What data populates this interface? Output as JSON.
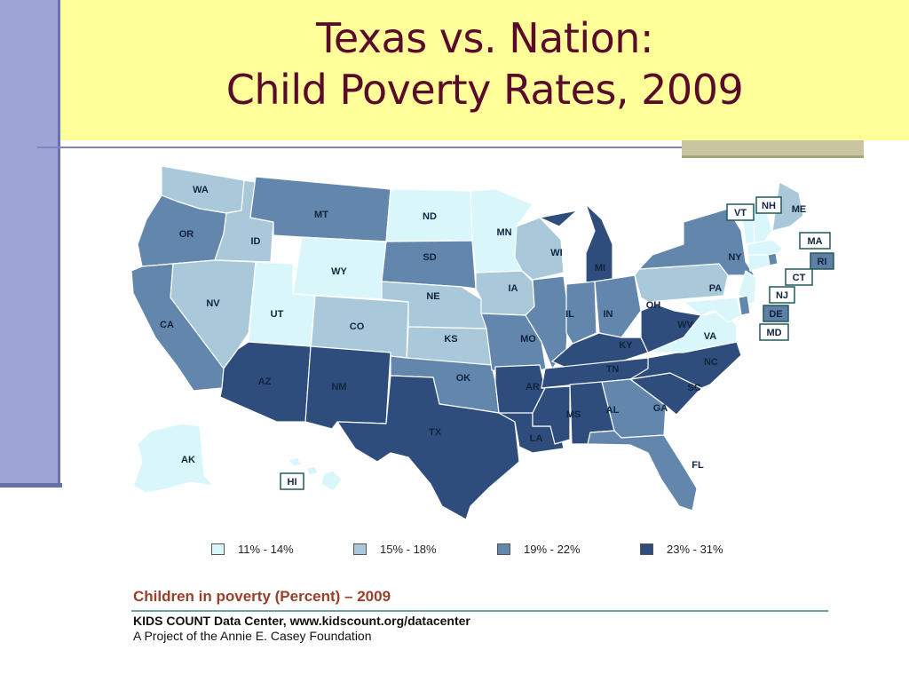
{
  "slide": {
    "title_line1": "Texas vs. Nation:",
    "title_line2": "Child Poverty Rates, 2009"
  },
  "map": {
    "legend": [
      {
        "label": "11% - 14%",
        "color": "#d9f6fa"
      },
      {
        "label": "15% - 18%",
        "color": "#a9c9db"
      },
      {
        "label": "19% - 22%",
        "color": "#6386ad"
      },
      {
        "label": "23% - 31%",
        "color": "#2f4d7c"
      }
    ],
    "states": [
      {
        "code": "WA",
        "bin": 1
      },
      {
        "code": "OR",
        "bin": 2
      },
      {
        "code": "CA",
        "bin": 2
      },
      {
        "code": "ID",
        "bin": 1
      },
      {
        "code": "NV",
        "bin": 1
      },
      {
        "code": "MT",
        "bin": 2
      },
      {
        "code": "WY",
        "bin": 0
      },
      {
        "code": "UT",
        "bin": 0
      },
      {
        "code": "CO",
        "bin": 1
      },
      {
        "code": "AZ",
        "bin": 3
      },
      {
        "code": "NM",
        "bin": 3
      },
      {
        "code": "ND",
        "bin": 0
      },
      {
        "code": "SD",
        "bin": 2
      },
      {
        "code": "NE",
        "bin": 1
      },
      {
        "code": "KS",
        "bin": 1
      },
      {
        "code": "OK",
        "bin": 2
      },
      {
        "code": "TX",
        "bin": 3
      },
      {
        "code": "MN",
        "bin": 0
      },
      {
        "code": "IA",
        "bin": 1
      },
      {
        "code": "MO",
        "bin": 2
      },
      {
        "code": "AR",
        "bin": 3
      },
      {
        "code": "LA",
        "bin": 3
      },
      {
        "code": "WI",
        "bin": 1
      },
      {
        "code": "IL",
        "bin": 2
      },
      {
        "code": "MI",
        "bin": 3
      },
      {
        "code": "IN",
        "bin": 2
      },
      {
        "code": "OH",
        "bin": 2
      },
      {
        "code": "KY",
        "bin": 3
      },
      {
        "code": "TN",
        "bin": 3
      },
      {
        "code": "MS",
        "bin": 3
      },
      {
        "code": "AL",
        "bin": 3
      },
      {
        "code": "GA",
        "bin": 2
      },
      {
        "code": "FL",
        "bin": 2
      },
      {
        "code": "SC",
        "bin": 3
      },
      {
        "code": "NC",
        "bin": 3
      },
      {
        "code": "VA",
        "bin": 0
      },
      {
        "code": "WV",
        "bin": 3
      },
      {
        "code": "PA",
        "bin": 1
      },
      {
        "code": "NY",
        "bin": 2
      },
      {
        "code": "ME",
        "bin": 1
      },
      {
        "code": "AK",
        "bin": 0
      },
      {
        "code": "HI",
        "bin": 0
      },
      {
        "code": "VT",
        "bin": 0
      },
      {
        "code": "NH",
        "bin": 0
      },
      {
        "code": "MA",
        "bin": 0
      },
      {
        "code": "RI",
        "bin": 2
      },
      {
        "code": "CT",
        "bin": 0
      },
      {
        "code": "NJ",
        "bin": 0
      },
      {
        "code": "DE",
        "bin": 2
      },
      {
        "code": "MD",
        "bin": 0
      }
    ]
  },
  "caption": {
    "title": "Children in poverty (Percent) – 2009",
    "source": "KIDS COUNT Data Center, www.kidscount.org/datacenter",
    "project": "A Project of the Annie E. Casey Foundation"
  }
}
